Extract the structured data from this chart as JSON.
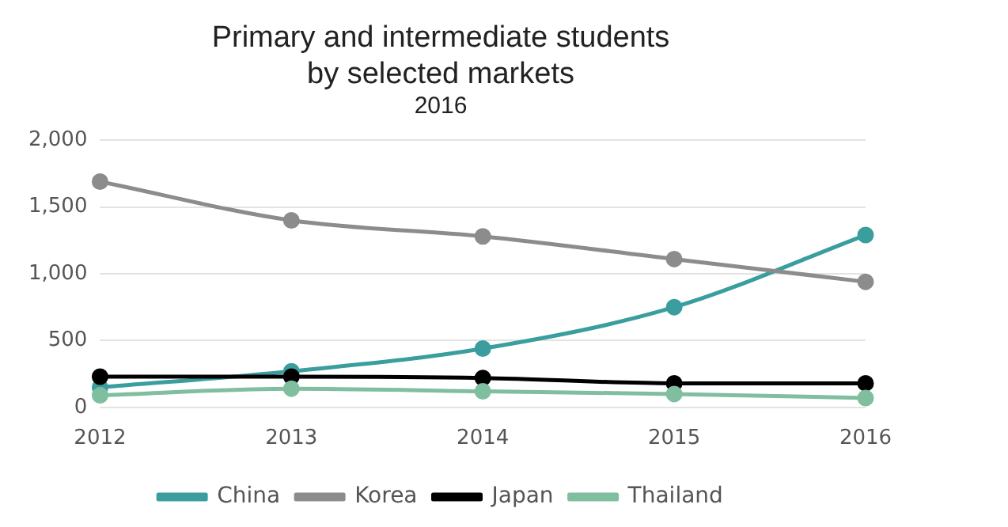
{
  "chart_data": {
    "type": "line",
    "title": "Primary and intermediate students\nby selected markets",
    "subtitle": "2016",
    "categories": [
      "2012",
      "2013",
      "2014",
      "2015",
      "2016"
    ],
    "series": [
      {
        "name": "China",
        "color": "#3a9e9e",
        "values": [
          150,
          270,
          440,
          750,
          1290
        ]
      },
      {
        "name": "Korea",
        "color": "#8c8c8c",
        "values": [
          1690,
          1400,
          1280,
          1110,
          940
        ]
      },
      {
        "name": "Japan",
        "color": "#000000",
        "values": [
          230,
          230,
          220,
          180,
          180
        ]
      },
      {
        "name": "Thailand",
        "color": "#7fbf9f",
        "values": [
          90,
          140,
          120,
          100,
          70
        ]
      }
    ],
    "ylim": [
      0,
      2000
    ],
    "yticks": [
      {
        "value": 0,
        "label": "0"
      },
      {
        "value": 500,
        "label": "500"
      },
      {
        "value": 1000,
        "label": "1,000"
      },
      {
        "value": 1500,
        "label": "1,500"
      },
      {
        "value": 2000,
        "label": "2,000"
      }
    ],
    "grid": "y",
    "legend": "bottom",
    "marker": "circle"
  }
}
